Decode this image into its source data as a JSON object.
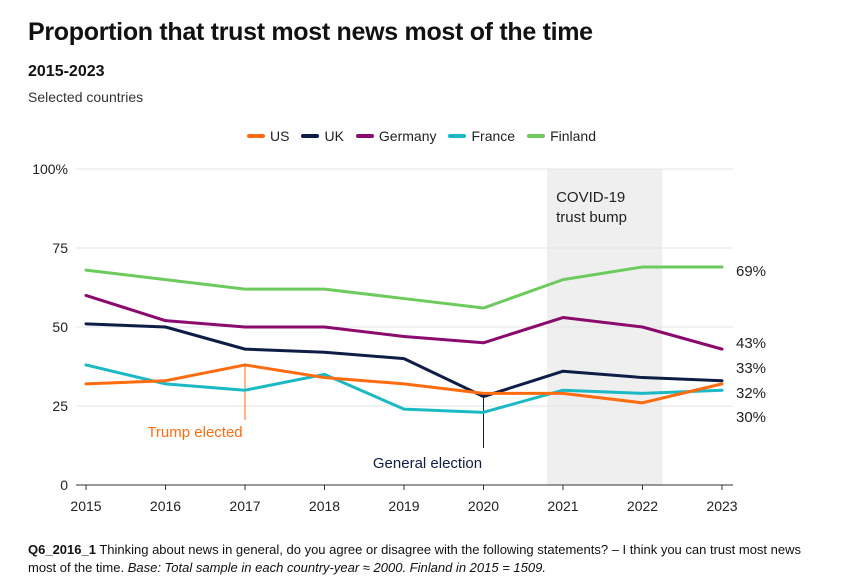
{
  "title": "Proportion that trust most news most of the time",
  "subtitle": "2015-2023",
  "caption": "Selected countries",
  "footnote": {
    "code": "Q6_2016_1",
    "question": " Thinking about news in general, do you agree or disagree with the following statements? – I think you can trust most news most of the time. ",
    "base": "Base: Total sample in each country-year ≈ 2000. Finland in 2015 = 1509."
  },
  "chart_data": {
    "type": "line",
    "title": "Proportion that trust most news most of the time",
    "subtitle": "2015-2023",
    "xlabel": "",
    "ylabel": "",
    "x": [
      "2015",
      "2016",
      "2017",
      "2018",
      "2019",
      "2020",
      "2021",
      "2022",
      "2023"
    ],
    "ylim": [
      0,
      100
    ],
    "yticks": [
      0,
      25,
      50,
      75,
      100
    ],
    "ytick_labels": [
      "0",
      "25",
      "50",
      "75",
      "100%"
    ],
    "grid": true,
    "legend_position": "top-center",
    "series": [
      {
        "name": "US",
        "color": "#FF6B0F",
        "values": [
          32,
          33,
          38,
          34,
          32,
          29,
          29,
          26,
          32
        ],
        "end_label": "32%"
      },
      {
        "name": "UK",
        "color": "#0E1D46",
        "values": [
          51,
          50,
          43,
          42,
          40,
          28,
          36,
          34,
          33
        ],
        "end_label": "33%"
      },
      {
        "name": "Germany",
        "color": "#8B0A6E",
        "values": [
          60,
          52,
          50,
          50,
          47,
          45,
          53,
          50,
          43
        ],
        "end_label": "43%"
      },
      {
        "name": "France",
        "color": "#1BB9C4",
        "values": [
          38,
          32,
          30,
          35,
          24,
          23,
          30,
          29,
          30
        ],
        "end_label": "30%"
      },
      {
        "name": "Finland",
        "color": "#6DCB5E",
        "values": [
          68,
          65,
          62,
          62,
          59,
          56,
          65,
          69,
          69
        ],
        "end_label": "69%"
      }
    ],
    "annotations": [
      {
        "text": "Trump elected",
        "x": "2017",
        "series": "US",
        "color": "#FF6B0F"
      },
      {
        "text": "General election",
        "x": "2020",
        "series": "UK",
        "color": "#0E1D46"
      },
      {
        "text_lines": [
          "COVID-19",
          "trust bump"
        ],
        "shaded_from": 2020.8,
        "shaded_to": 2022.25,
        "color": "#222222",
        "shade": "#EFEFEF"
      }
    ]
  }
}
